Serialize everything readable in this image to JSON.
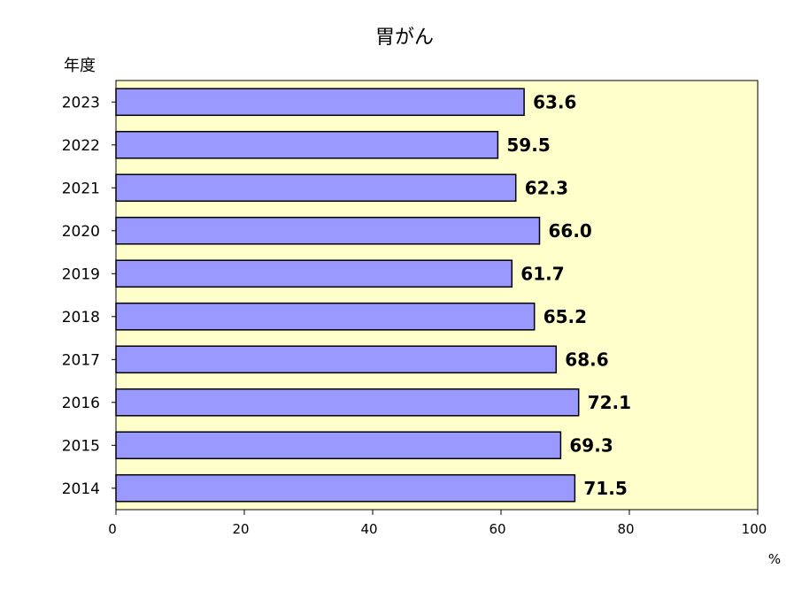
{
  "chart_data": {
    "type": "bar",
    "orientation": "horizontal",
    "title": "胃がん",
    "ylabel": "年度",
    "xunit": "%",
    "xlim": [
      0,
      100
    ],
    "xticks": [
      0,
      20,
      40,
      60,
      80,
      100
    ],
    "categories": [
      "2023",
      "2022",
      "2021",
      "2020",
      "2019",
      "2018",
      "2017",
      "2016",
      "2015",
      "2014"
    ],
    "values": [
      63.6,
      59.5,
      62.3,
      66.0,
      61.7,
      65.2,
      68.6,
      72.1,
      69.3,
      71.5
    ],
    "data_labels": [
      "63.6",
      "59.5",
      "62.3",
      "66.0",
      "61.7",
      "65.2",
      "68.6",
      "72.1",
      "69.3",
      "71.5"
    ],
    "grid": false,
    "legend": "none",
    "colors": {
      "bar": "#9999ff",
      "plot_background": "#ffffcc",
      "bar_border": "#000000"
    }
  }
}
